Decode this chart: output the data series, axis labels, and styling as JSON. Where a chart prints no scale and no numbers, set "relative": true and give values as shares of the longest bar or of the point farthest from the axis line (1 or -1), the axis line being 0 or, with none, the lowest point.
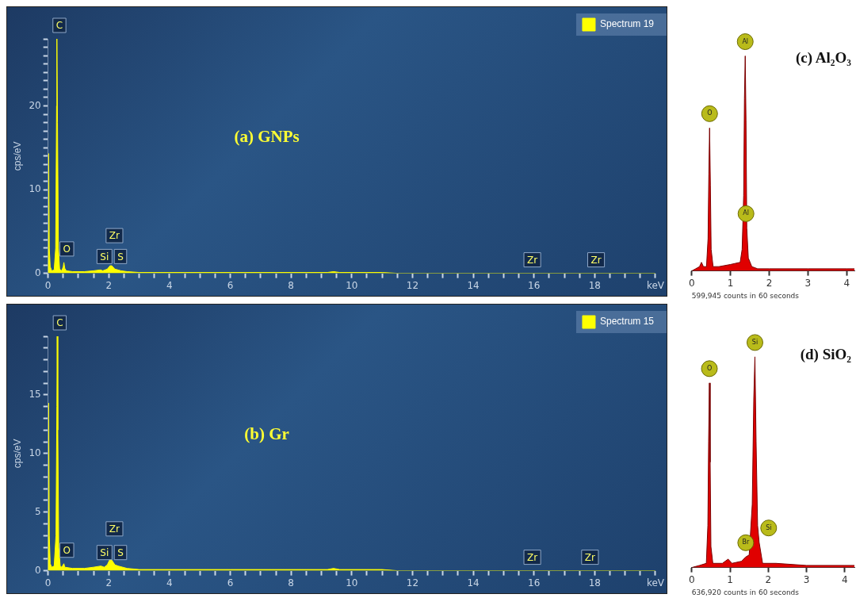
{
  "chart_data": [
    {
      "type": "area",
      "title": "(a) GNPs",
      "ylabel": "cps/eV",
      "legend": "top right",
      "series": [
        {
          "name": "Spectrum 19",
          "color": "#ffff00",
          "x": [
            0,
            0.01,
            0.02,
            0.04,
            0.07,
            0.12,
            0.2,
            0.25,
            0.28,
            0.29,
            0.31,
            0.34,
            0.38,
            0.45,
            0.5,
            0.52,
            0.55,
            0.6,
            0.8,
            1.2,
            1.5,
            1.7,
            1.74,
            1.8,
            1.95,
            2.04,
            2.1,
            2.2,
            2.31,
            2.4,
            2.6,
            3,
            4,
            6,
            8,
            9.2,
            9.4,
            9.6,
            11,
            11.5,
            20
          ],
          "values": [
            0,
            5,
            14.3,
            3,
            0.8,
            0.3,
            0.4,
            3,
            20,
            28,
            18,
            3,
            0.5,
            0.3,
            0.8,
            1.3,
            0.6,
            0.3,
            0.2,
            0.2,
            0.3,
            0.4,
            0.4,
            0.3,
            0.5,
            0.9,
            0.9,
            0.5,
            0.4,
            0.3,
            0.2,
            0.1,
            0.1,
            0.1,
            0.1,
            0.1,
            0.2,
            0.1,
            0.1,
            0,
            0
          ]
        }
      ],
      "xlim": [
        0,
        20
      ],
      "xticks": [
        0,
        {
          "value": 0.5,
          "label": null
        },
        {
          "value": 1,
          "label": null
        },
        {
          "value": 1.5,
          "label": null
        },
        2,
        {
          "value": 2.5,
          "label": null
        },
        {
          "value": 3,
          "label": null
        },
        {
          "value": 3.5,
          "label": null
        },
        4,
        {
          "value": 4.5,
          "label": null
        },
        {
          "value": 5,
          "label": null
        },
        {
          "value": 5.5,
          "label": null
        },
        6,
        {
          "value": 6.5,
          "label": null
        },
        {
          "value": 7,
          "label": null
        },
        {
          "value": 7.5,
          "label": null
        },
        8,
        {
          "value": 8.5,
          "label": null
        },
        {
          "value": 9,
          "label": null
        },
        {
          "value": 9.5,
          "label": null
        },
        10,
        {
          "value": 10.5,
          "label": null
        },
        {
          "value": 11,
          "label": null
        },
        {
          "value": 11.5,
          "label": null
        },
        12,
        {
          "value": 12.5,
          "label": null
        },
        {
          "value": 13,
          "label": null
        },
        {
          "value": 13.5,
          "label": null
        },
        14,
        {
          "value": 14.5,
          "label": null
        },
        {
          "value": 15,
          "label": null
        },
        {
          "value": 15.5,
          "label": null
        },
        16,
        {
          "value": 16.5,
          "label": null
        },
        {
          "value": 17,
          "label": null
        },
        {
          "value": 17.5,
          "label": null
        },
        18,
        {
          "value": 18.5,
          "label": null
        },
        {
          "value": 19,
          "label": null
        },
        {
          "value": 19.5,
          "label": null
        },
        {
          "value": 20,
          "label": "keV"
        }
      ],
      "ylim": [
        0,
        28
      ],
      "yticks": [
        0,
        {
          "value": 1,
          "label": null
        },
        {
          "value": 2,
          "label": null
        },
        {
          "value": 3,
          "label": null
        },
        {
          "value": 4,
          "label": null
        },
        {
          "value": 5,
          "label": null
        },
        {
          "value": 6,
          "label": null
        },
        {
          "value": 7,
          "label": null
        },
        {
          "value": 8,
          "label": null
        },
        {
          "value": 9,
          "label": null
        },
        10,
        {
          "value": 11,
          "label": null
        },
        {
          "value": 12,
          "label": null
        },
        {
          "value": 13,
          "label": null
        },
        {
          "value": 14,
          "label": null
        },
        {
          "value": 15,
          "label": null
        },
        {
          "value": 16,
          "label": null
        },
        {
          "value": 17,
          "label": null
        },
        {
          "value": 18,
          "label": null
        },
        {
          "value": 19,
          "label": null
        },
        20,
        {
          "value": 21,
          "label": null
        },
        {
          "value": 22,
          "label": null
        },
        {
          "value": 23,
          "label": null
        },
        {
          "value": 24,
          "label": null
        },
        {
          "value": 25,
          "label": null
        },
        {
          "value": 26,
          "label": null
        },
        {
          "value": 27,
          "label": null
        },
        {
          "value": 28,
          "label": null
        }
      ],
      "annotations": [
        {
          "text": "C",
          "x": 0.29,
          "y": 28
        },
        {
          "text": "O",
          "x": 0.52,
          "y": 1.3
        },
        {
          "text": "Si",
          "x": 1.74,
          "y": 0.4
        },
        {
          "text": "Zr",
          "x": 2.04,
          "y": 0.9
        },
        {
          "text": "S",
          "x": 2.31,
          "y": 0.4
        },
        {
          "text": "Zr",
          "x": 15.8,
          "y": 0
        },
        {
          "text": "Zr",
          "x": 17.9,
          "y": 0
        }
      ]
    },
    {
      "type": "area",
      "title": "(b) Gr",
      "ylabel": "cps/eV",
      "legend": "top right",
      "series": [
        {
          "name": "Spectrum 15",
          "color": "#ffff00",
          "x": [
            0,
            0.01,
            0.02,
            0.04,
            0.07,
            0.12,
            0.2,
            0.26,
            0.29,
            0.3,
            0.32,
            0.35,
            0.4,
            0.45,
            0.52,
            0.55,
            0.8,
            1.2,
            1.5,
            1.74,
            1.85,
            1.95,
            2.04,
            2.1,
            2.2,
            2.31,
            2.6,
            3,
            4,
            6,
            9.2,
            9.4,
            9.6,
            11,
            11.5,
            20
          ],
          "values": [
            0,
            5,
            14.3,
            3,
            0.6,
            0.3,
            0.4,
            3,
            14,
            20,
            12,
            2,
            0.4,
            0.3,
            0.6,
            0.3,
            0.2,
            0.2,
            0.3,
            0.4,
            0.3,
            0.5,
            1,
            0.9,
            0.5,
            0.4,
            0.2,
            0.1,
            0.1,
            0.1,
            0.1,
            0.2,
            0.1,
            0.1,
            0,
            0
          ]
        }
      ],
      "xlim": [
        0,
        20
      ],
      "xticks": [
        0,
        {
          "value": 0.5,
          "label": null
        },
        {
          "value": 1,
          "label": null
        },
        {
          "value": 1.5,
          "label": null
        },
        2,
        {
          "value": 2.5,
          "label": null
        },
        {
          "value": 3,
          "label": null
        },
        {
          "value": 3.5,
          "label": null
        },
        4,
        {
          "value": 4.5,
          "label": null
        },
        {
          "value": 5,
          "label": null
        },
        {
          "value": 5.5,
          "label": null
        },
        6,
        {
          "value": 6.5,
          "label": null
        },
        {
          "value": 7,
          "label": null
        },
        {
          "value": 7.5,
          "label": null
        },
        8,
        {
          "value": 8.5,
          "label": null
        },
        {
          "value": 9,
          "label": null
        },
        {
          "value": 9.5,
          "label": null
        },
        10,
        {
          "value": 10.5,
          "label": null
        },
        {
          "value": 11,
          "label": null
        },
        {
          "value": 11.5,
          "label": null
        },
        12,
        {
          "value": 12.5,
          "label": null
        },
        {
          "value": 13,
          "label": null
        },
        {
          "value": 13.5,
          "label": null
        },
        14,
        {
          "value": 14.5,
          "label": null
        },
        {
          "value": 15,
          "label": null
        },
        {
          "value": 15.5,
          "label": null
        },
        16,
        {
          "value": 16.5,
          "label": null
        },
        {
          "value": 17,
          "label": null
        },
        {
          "value": 17.5,
          "label": null
        },
        18,
        {
          "value": 18.5,
          "label": null
        },
        {
          "value": 19,
          "label": null
        },
        {
          "value": 19.5,
          "label": null
        },
        {
          "value": 20,
          "label": "keV"
        }
      ],
      "ylim": [
        0,
        20
      ],
      "yticks": [
        0,
        {
          "value": 1,
          "label": null
        },
        {
          "value": 2,
          "label": null
        },
        {
          "value": 3,
          "label": null
        },
        {
          "value": 4,
          "label": null
        },
        5,
        {
          "value": 6,
          "label": null
        },
        {
          "value": 7,
          "label": null
        },
        {
          "value": 8,
          "label": null
        },
        {
          "value": 9,
          "label": null
        },
        10,
        {
          "value": 11,
          "label": null
        },
        {
          "value": 12,
          "label": null
        },
        {
          "value": 13,
          "label": null
        },
        {
          "value": 14,
          "label": null
        },
        15,
        {
          "value": 16,
          "label": null
        },
        {
          "value": 17,
          "label": null
        },
        {
          "value": 18,
          "label": null
        },
        {
          "value": 19,
          "label": null
        },
        {
          "value": 20,
          "label": null
        }
      ],
      "annotations": [
        {
          "text": "C",
          "x": 0.3,
          "y": 20
        },
        {
          "text": "O",
          "x": 0.52,
          "y": 0.6
        },
        {
          "text": "Si",
          "x": 1.74,
          "y": 0.4
        },
        {
          "text": "Zr",
          "x": 2.04,
          "y": 1
        },
        {
          "text": "S",
          "x": 2.31,
          "y": 0.4
        },
        {
          "text": "Zr",
          "x": 15.8,
          "y": 0
        },
        {
          "text": "Zr",
          "x": 17.7,
          "y": 0
        }
      ]
    },
    {
      "type": "area",
      "title": "(c) Al₂O₃",
      "relative": true,
      "series": [
        {
          "color": "#e00000",
          "x": [
            0,
            0.1,
            0.2,
            0.25,
            0.3,
            0.38,
            0.42,
            0.44,
            0.46,
            0.48,
            0.5,
            0.55,
            0.7,
            1.0,
            1.25,
            1.3,
            1.34,
            1.36,
            1.38,
            1.4,
            1.42,
            1.46,
            1.55,
            1.7,
            2,
            3,
            4,
            4.2
          ],
          "values": [
            0,
            0.01,
            0.02,
            0.04,
            0.02,
            0.02,
            0.15,
            0.45,
            0.665,
            0.4,
            0.1,
            0.02,
            0.02,
            0.03,
            0.04,
            0.1,
            0.35,
            0.8,
            1,
            0.7,
            0.2,
            0.06,
            0.02,
            0.01,
            0.01,
            0.01,
            0.01,
            0.01
          ]
        }
      ],
      "xlim": [
        0,
        4.2
      ],
      "xticks": [
        0,
        1,
        2,
        3,
        4
      ],
      "annotations": [
        {
          "text": "O",
          "x": 0.46,
          "y": 0.665
        },
        {
          "text": "Al",
          "x": 1.38,
          "y": 1
        },
        {
          "text": "Al",
          "x": 1.4,
          "y": 0.2
        },
        "599,945 counts in 60 seconds"
      ]
    },
    {
      "type": "area",
      "title": "(d) SiO₂",
      "relative": true,
      "series": [
        {
          "color": "#e00000",
          "x": [
            0,
            0.2,
            0.38,
            0.42,
            0.44,
            0.46,
            0.48,
            0.5,
            0.55,
            0.8,
            0.95,
            1.05,
            1.3,
            1.41,
            1.5,
            1.58,
            1.62,
            1.65,
            1.68,
            1.72,
            1.76,
            1.85,
            2.2,
            3,
            4,
            4.25
          ],
          "values": [
            0,
            0.01,
            0.02,
            0.2,
            0.6,
            0.876,
            0.5,
            0.1,
            0.02,
            0.02,
            0.04,
            0.02,
            0.03,
            0.05,
            0.06,
            0.3,
            0.8,
            1,
            0.6,
            0.2,
            0.12,
            0.02,
            0.02,
            0.01,
            0.01,
            0.01
          ]
        }
      ],
      "xlim": [
        0,
        4.25
      ],
      "xticks": [
        0,
        1,
        2,
        3,
        4
      ],
      "annotations": [
        {
          "text": "O",
          "x": 0.46,
          "y": 0.876
        },
        {
          "text": "Si",
          "x": 1.65,
          "y": 1
        },
        {
          "text": "Br",
          "x": 1.41,
          "y": 0.05
        },
        {
          "text": "Si",
          "x": 1.76,
          "y": 0.12
        },
        "636,920 counts in 60 seconds"
      ]
    }
  ]
}
